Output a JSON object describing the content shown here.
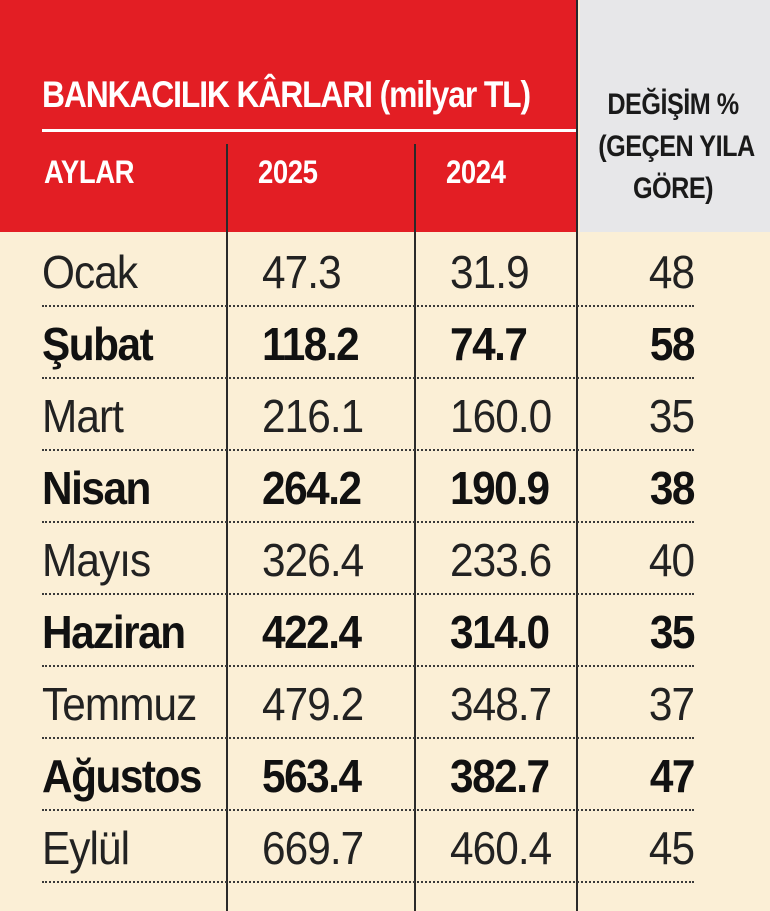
{
  "chart_data": {
    "type": "table",
    "title": "BANKACILIK KÂRLARI (milyar TL)",
    "columns": [
      "AYLAR",
      "2025",
      "2024",
      "DEĞİŞİM % (GEÇEN YILA GÖRE)"
    ],
    "change_header_lines": [
      "DEĞİŞİM %",
      "(GEÇEN YILA",
      "GÖRE)"
    ],
    "rows": [
      {
        "month": "Ocak",
        "v2025": "47.3",
        "v2024": "31.9",
        "change": "48",
        "bold": false
      },
      {
        "month": "Şubat",
        "v2025": "118.2",
        "v2024": "74.7",
        "change": "58",
        "bold": true
      },
      {
        "month": "Mart",
        "v2025": "216.1",
        "v2024": "160.0",
        "change": "35",
        "bold": false
      },
      {
        "month": "Nisan",
        "v2025": "264.2",
        "v2024": "190.9",
        "change": "38",
        "bold": true
      },
      {
        "month": "Mayıs",
        "v2025": "326.4",
        "v2024": "233.6",
        "change": "40",
        "bold": false
      },
      {
        "month": "Haziran",
        "v2025": "422.4",
        "v2024": "314.0",
        "change": "35",
        "bold": true
      },
      {
        "month": "Temmuz",
        "v2025": "479.2",
        "v2024": "348.7",
        "change": "37",
        "bold": false
      },
      {
        "month": "Ağustos",
        "v2025": "563.4",
        "v2024": "382.7",
        "change": "47",
        "bold": true
      },
      {
        "month": "Eylül",
        "v2025": "669.7",
        "v2024": "460.4",
        "change": "45",
        "bold": false
      }
    ]
  },
  "colors": {
    "header_red": "#e31e24",
    "header_gray": "#e7e7e9",
    "body_background": "#fbefd6",
    "text": "#222222"
  }
}
